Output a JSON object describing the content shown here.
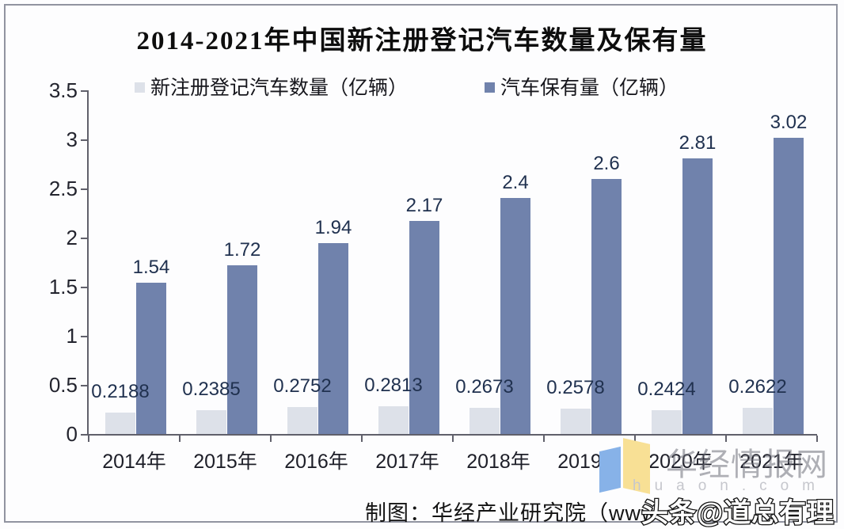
{
  "title": "2014-2021年中国新注册登记汽车数量及保有量",
  "legend": [
    {
      "label": "新注册登记汽车数量（亿辆）"
    },
    {
      "label": "汽车保有量（亿辆）"
    }
  ],
  "chart_data": {
    "type": "bar",
    "title": "2014-2021年中国新注册登记汽车数量及保有量",
    "categories": [
      "2014年",
      "2015年",
      "2016年",
      "2017年",
      "2018年",
      "2019年",
      "2020年",
      "2021年"
    ],
    "series": [
      {
        "name": "新注册登记汽车数量（亿辆）",
        "color": "#dde1e9",
        "values": [
          0.2188,
          0.2385,
          0.2752,
          0.2813,
          0.2673,
          0.2578,
          0.2424,
          0.2622
        ],
        "labels": [
          "0.2188",
          "0.2385",
          "0.2752",
          "0.2813",
          "0.2673",
          "0.2578",
          "0.2424",
          "0.2622"
        ]
      },
      {
        "name": "汽车保有量（亿辆）",
        "color": "#7082ac",
        "values": [
          1.54,
          1.72,
          1.94,
          2.17,
          2.4,
          2.6,
          2.81,
          3.02
        ],
        "labels": [
          "1.54",
          "1.72",
          "1.94",
          "2.17",
          "2.4",
          "2.6",
          "2.81",
          "3.02"
        ]
      }
    ],
    "xlabel": "",
    "ylabel": "",
    "ylim": [
      0,
      3.5
    ],
    "yticks": [
      "0",
      "0.5",
      "1",
      "1.5",
      "2",
      "2.5",
      "3",
      "3.5"
    ],
    "grid": false,
    "legend_position": "top"
  },
  "footer": {
    "credit": "制图：华经产业研究院（www"
  },
  "watermarks": {
    "site_name": "华经情报网",
    "site_url": "huaon.com",
    "toutiao": "头条@道总有理"
  },
  "colors": {
    "bar_light": "#dde1e9",
    "bar_dark": "#7082ac",
    "axis": "#60606b",
    "value_label": "#20314f",
    "logo_blue": "#87b2e8",
    "logo_yellow": "#f8e095"
  }
}
